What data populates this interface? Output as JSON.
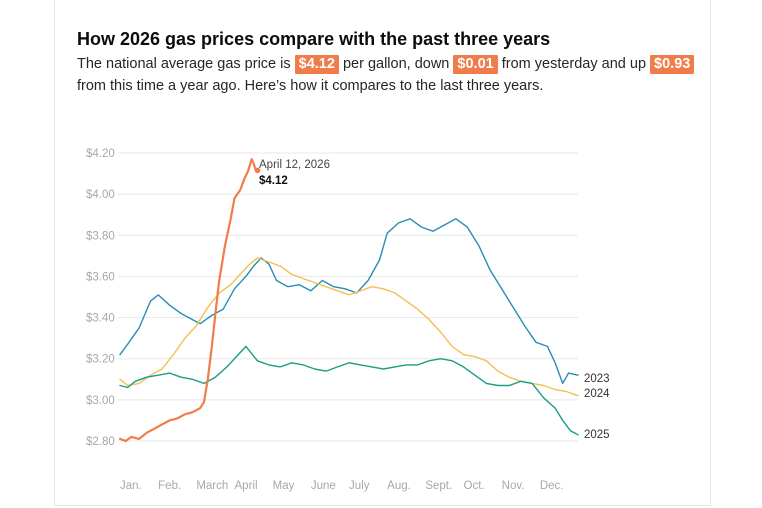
{
  "header": {
    "title": "How 2026 gas prices compare with the past three years",
    "subtitle_part1": "The national average gas price is ",
    "badge_current": "$4.12",
    "subtitle_part2": " per gallon, down ",
    "badge_day_change": "$0.01",
    "subtitle_part3": " from yesterday and up ",
    "badge_year_change": "$0.93",
    "subtitle_part4": " from this time a year ago. Here’s how it compares to the last three years."
  },
  "colors": {
    "s2023": "#2a8db5",
    "s2024": "#f3c04f",
    "s2025": "#1e9c84",
    "s2026": "#f07c4a",
    "grid": "#e8e8e8",
    "badge": "#f07c4a"
  },
  "chart_data": {
    "type": "line",
    "title": "How 2026 gas prices compare with the past three years",
    "x_unit": "month (0 = Jan 1, 12 = Dec 31)",
    "xlim": [
      0,
      12
    ],
    "ylim": [
      2.75,
      4.25
    ],
    "y_ticks": [
      2.8,
      3.0,
      3.2,
      3.4,
      3.6,
      3.8,
      4.0,
      4.2
    ],
    "y_tick_labels": [
      "$2.80",
      "$3.00",
      "$3.20",
      "$3.40",
      "$3.60",
      "$3.80",
      "$4.00",
      "$4.20"
    ],
    "x_tick_labels": [
      "Jan.",
      "Feb.",
      "March",
      "April",
      "May",
      "June",
      "July",
      "Aug.",
      "Sept.",
      "Oct.",
      "Nov.",
      "Dec."
    ],
    "series": [
      {
        "name": "2023",
        "label": "2023",
        "color_key": "s2023",
        "points": [
          [
            0,
            3.22
          ],
          [
            0.2,
            3.27
          ],
          [
            0.5,
            3.35
          ],
          [
            0.8,
            3.48
          ],
          [
            1.0,
            3.51
          ],
          [
            1.3,
            3.46
          ],
          [
            1.6,
            3.42
          ],
          [
            1.9,
            3.39
          ],
          [
            2.1,
            3.37
          ],
          [
            2.4,
            3.41
          ],
          [
            2.7,
            3.44
          ],
          [
            3.0,
            3.54
          ],
          [
            3.3,
            3.6
          ],
          [
            3.5,
            3.65
          ],
          [
            3.7,
            3.69
          ],
          [
            3.9,
            3.66
          ],
          [
            4.1,
            3.58
          ],
          [
            4.4,
            3.55
          ],
          [
            4.7,
            3.56
          ],
          [
            5.0,
            3.53
          ],
          [
            5.3,
            3.58
          ],
          [
            5.6,
            3.55
          ],
          [
            5.9,
            3.54
          ],
          [
            6.2,
            3.52
          ],
          [
            6.5,
            3.58
          ],
          [
            6.8,
            3.68
          ],
          [
            7.0,
            3.81
          ],
          [
            7.3,
            3.86
          ],
          [
            7.6,
            3.88
          ],
          [
            7.9,
            3.84
          ],
          [
            8.2,
            3.82
          ],
          [
            8.5,
            3.85
          ],
          [
            8.8,
            3.88
          ],
          [
            9.1,
            3.84
          ],
          [
            9.4,
            3.75
          ],
          [
            9.7,
            3.63
          ],
          [
            10.0,
            3.54
          ],
          [
            10.3,
            3.45
          ],
          [
            10.6,
            3.36
          ],
          [
            10.9,
            3.28
          ],
          [
            11.2,
            3.26
          ],
          [
            11.4,
            3.18
          ],
          [
            11.6,
            3.08
          ],
          [
            11.75,
            3.13
          ],
          [
            12.0,
            3.12
          ]
        ]
      },
      {
        "name": "2024",
        "label": "2024",
        "color_key": "s2024",
        "points": [
          [
            0,
            3.1
          ],
          [
            0.2,
            3.07
          ],
          [
            0.5,
            3.08
          ],
          [
            0.8,
            3.12
          ],
          [
            1.1,
            3.15
          ],
          [
            1.4,
            3.22
          ],
          [
            1.7,
            3.3
          ],
          [
            2.0,
            3.36
          ],
          [
            2.3,
            3.45
          ],
          [
            2.6,
            3.52
          ],
          [
            2.9,
            3.56
          ],
          [
            3.1,
            3.6
          ],
          [
            3.4,
            3.66
          ],
          [
            3.6,
            3.69
          ],
          [
            3.9,
            3.67
          ],
          [
            4.2,
            3.65
          ],
          [
            4.5,
            3.61
          ],
          [
            4.8,
            3.59
          ],
          [
            5.1,
            3.57
          ],
          [
            5.4,
            3.55
          ],
          [
            5.7,
            3.53
          ],
          [
            6.0,
            3.51
          ],
          [
            6.3,
            3.53
          ],
          [
            6.6,
            3.55
          ],
          [
            6.9,
            3.54
          ],
          [
            7.2,
            3.52
          ],
          [
            7.5,
            3.48
          ],
          [
            7.8,
            3.44
          ],
          [
            8.1,
            3.39
          ],
          [
            8.4,
            3.33
          ],
          [
            8.7,
            3.26
          ],
          [
            9.0,
            3.22
          ],
          [
            9.3,
            3.21
          ],
          [
            9.6,
            3.19
          ],
          [
            9.9,
            3.14
          ],
          [
            10.2,
            3.11
          ],
          [
            10.5,
            3.09
          ],
          [
            10.8,
            3.08
          ],
          [
            11.1,
            3.07
          ],
          [
            11.4,
            3.05
          ],
          [
            11.7,
            3.04
          ],
          [
            12.0,
            3.02
          ]
        ]
      },
      {
        "name": "2025",
        "label": "2025",
        "color_key": "s2025",
        "points": [
          [
            0,
            3.07
          ],
          [
            0.2,
            3.06
          ],
          [
            0.4,
            3.09
          ],
          [
            0.7,
            3.11
          ],
          [
            1.0,
            3.12
          ],
          [
            1.3,
            3.13
          ],
          [
            1.6,
            3.11
          ],
          [
            1.9,
            3.1
          ],
          [
            2.2,
            3.08
          ],
          [
            2.5,
            3.11
          ],
          [
            2.8,
            3.16
          ],
          [
            3.1,
            3.22
          ],
          [
            3.3,
            3.26
          ],
          [
            3.6,
            3.19
          ],
          [
            3.9,
            3.17
          ],
          [
            4.2,
            3.16
          ],
          [
            4.5,
            3.18
          ],
          [
            4.8,
            3.17
          ],
          [
            5.1,
            3.15
          ],
          [
            5.4,
            3.14
          ],
          [
            5.7,
            3.16
          ],
          [
            6.0,
            3.18
          ],
          [
            6.3,
            3.17
          ],
          [
            6.6,
            3.16
          ],
          [
            6.9,
            3.15
          ],
          [
            7.2,
            3.16
          ],
          [
            7.5,
            3.17
          ],
          [
            7.8,
            3.17
          ],
          [
            8.1,
            3.19
          ],
          [
            8.4,
            3.2
          ],
          [
            8.7,
            3.19
          ],
          [
            9.0,
            3.16
          ],
          [
            9.3,
            3.12
          ],
          [
            9.6,
            3.08
          ],
          [
            9.9,
            3.07
          ],
          [
            10.2,
            3.07
          ],
          [
            10.5,
            3.09
          ],
          [
            10.8,
            3.08
          ],
          [
            11.1,
            3.01
          ],
          [
            11.4,
            2.96
          ],
          [
            11.6,
            2.9
          ],
          [
            11.8,
            2.85
          ],
          [
            12.0,
            2.83
          ]
        ]
      },
      {
        "name": "2026",
        "label": "",
        "color_key": "s2026",
        "points": [
          [
            0,
            2.81
          ],
          [
            0.15,
            2.8
          ],
          [
            0.3,
            2.82
          ],
          [
            0.5,
            2.81
          ],
          [
            0.7,
            2.84
          ],
          [
            0.9,
            2.86
          ],
          [
            1.1,
            2.88
          ],
          [
            1.3,
            2.9
          ],
          [
            1.5,
            2.91
          ],
          [
            1.7,
            2.93
          ],
          [
            1.9,
            2.94
          ],
          [
            2.1,
            2.96
          ],
          [
            2.2,
            2.99
          ],
          [
            2.3,
            3.1
          ],
          [
            2.4,
            3.25
          ],
          [
            2.5,
            3.42
          ],
          [
            2.6,
            3.58
          ],
          [
            2.75,
            3.75
          ],
          [
            2.9,
            3.88
          ],
          [
            3.0,
            3.98
          ],
          [
            3.15,
            4.02
          ],
          [
            3.25,
            4.07
          ],
          [
            3.35,
            4.11
          ],
          [
            3.45,
            4.17
          ],
          [
            3.5,
            4.15
          ],
          [
            3.55,
            4.12
          ]
        ]
      }
    ],
    "annotation": {
      "label": "April 12, 2026",
      "value": "$4.12",
      "x": 3.55,
      "y": 4.12
    }
  }
}
